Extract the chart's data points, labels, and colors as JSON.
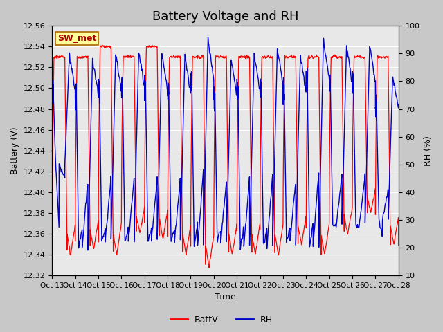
{
  "title": "Battery Voltage and RH",
  "xlabel": "Time",
  "ylabel_left": "Battery (V)",
  "ylabel_right": "RH (%)",
  "annotation": "SW_met",
  "legend": [
    "BattV",
    "RH"
  ],
  "batt_color": "#FF0000",
  "rh_color": "#0000CC",
  "ylim_left": [
    12.32,
    12.56
  ],
  "ylim_right": [
    10,
    100
  ],
  "yticks_left": [
    12.32,
    12.34,
    12.36,
    12.38,
    12.4,
    12.42,
    12.44,
    12.46,
    12.48,
    12.5,
    12.52,
    12.54,
    12.56
  ],
  "yticks_right": [
    10,
    20,
    30,
    40,
    50,
    60,
    70,
    80,
    90,
    100
  ],
  "xtick_labels": [
    "Oct 13",
    "Oct 14",
    "Oct 15",
    "Oct 16",
    "Oct 17",
    "Oct 18",
    "Oct 19",
    "Oct 20",
    "Oct 21",
    "Oct 22",
    "Oct 23",
    "Oct 24",
    "Oct 25",
    "Oct 26",
    "Oct 27",
    "Oct 28"
  ],
  "fig_bg_color": "#C8C8C8",
  "plot_bg_color": "#E8E8E8",
  "grid_color": "#FFFFFF",
  "title_fontsize": 13,
  "label_fontsize": 9,
  "tick_fontsize": 8,
  "annotation_fontsize": 9
}
